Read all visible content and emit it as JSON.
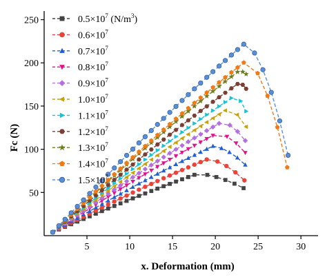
{
  "chart_data": {
    "type": "scatter",
    "xlabel": "x. Deformation (mm)",
    "ylabel": "Fc (N)",
    "xlim": [
      0,
      32
    ],
    "ylim": [
      0,
      260
    ],
    "x_ticks": [
      5,
      10,
      15,
      20,
      25,
      30
    ],
    "y_ticks": [
      50,
      100,
      150,
      200,
      250
    ],
    "x_tick_labels": [
      "5",
      "10",
      "15",
      "20",
      "25",
      "30"
    ],
    "y_tick_labels": [
      "50",
      "100",
      "150",
      "200",
      "250"
    ],
    "grid": false,
    "legend_position": "top-left",
    "series": [
      {
        "name": "0.5×10",
        "exp": "7",
        "unit": "(N/m",
        "unit_exp": "3",
        "unit_close": ")",
        "color": "#444444",
        "marker": "square",
        "peak_x": 18.0,
        "peak_y": 72,
        "end_x": 23.3,
        "end_y": 55
      },
      {
        "name": "0.6×10",
        "exp": "7",
        "color": "#e8443a",
        "marker": "circle",
        "peak_x": 19.2,
        "peak_y": 89,
        "end_x": 23.4,
        "end_y": 64
      },
      {
        "name": "0.7×10",
        "exp": "7",
        "color": "#1f5fd1",
        "marker": "triangle-up",
        "peak_x": 19.8,
        "peak_y": 104,
        "end_x": 23.5,
        "end_y": 82
      },
      {
        "name": "0.8×10",
        "exp": "7",
        "color": "#e0138c",
        "marker": "triangle-down",
        "peak_x": 20.3,
        "peak_y": 119,
        "end_x": 23.5,
        "end_y": 96
      },
      {
        "name": "0.9×10",
        "exp": "7",
        "color": "#b46fe0",
        "marker": "diamond",
        "peak_x": 20.8,
        "peak_y": 132,
        "end_x": 23.5,
        "end_y": 110
      },
      {
        "name": "1.0×10",
        "exp": "7",
        "color": "#c9a10a",
        "marker": "triangle-left",
        "peak_x": 21.5,
        "peak_y": 147,
        "end_x": 23.6,
        "end_y": 126
      },
      {
        "name": "1.1×10",
        "exp": "7",
        "color": "#17c1d6",
        "marker": "triangle-right",
        "peak_x": 22.3,
        "peak_y": 162,
        "end_x": 23.6,
        "end_y": 144
      },
      {
        "name": "1.2×10",
        "exp": "7",
        "color": "#7b3e33",
        "marker": "hexagon",
        "peak_x": 22.8,
        "peak_y": 177,
        "end_x": 23.6,
        "end_y": 170
      },
      {
        "name": "1.3×10",
        "exp": "7",
        "color": "#6e7d1f",
        "marker": "star",
        "peak_x": 22.8,
        "peak_y": 191,
        "end_x": 23.6,
        "end_y": 187
      },
      {
        "name": "1.4×10",
        "exp": "7",
        "color": "#f07a16",
        "marker": "pentagon",
        "peak_x": 23.8,
        "peak_y": 204,
        "end_x": 28.4,
        "end_y": 79
      },
      {
        "name": "1.5×10",
        "exp": "7",
        "color": "#5a8fd6",
        "marker": "sphere",
        "peak_x": 23.6,
        "peak_y": 224,
        "end_x": 28.5,
        "end_y": 93
      }
    ]
  }
}
